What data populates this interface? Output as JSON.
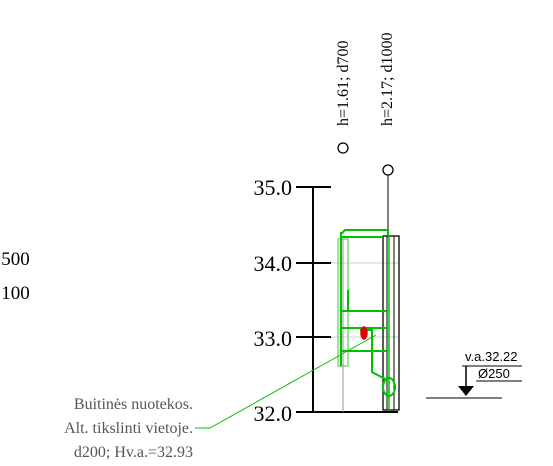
{
  "scale_labels": [
    ":500",
    ":100"
  ],
  "wells": [
    {
      "label": "h=1.61; d700"
    },
    {
      "label": "h=2.17; d1000"
    }
  ],
  "axis": {
    "ticks": [
      "35.0",
      "34.0",
      "33.0",
      "32.0"
    ]
  },
  "right_marker": {
    "elevation": "v.a.32.22",
    "diameter": "Ø250"
  },
  "note": {
    "line1": "Buitinės nuotekos.",
    "line2": "Alt. tikslinti vietoje.",
    "line3": "d200; Hv.a.=32.93"
  },
  "colors": {
    "pipe_green": "#00c000",
    "light_green": "#7fd77f",
    "marker_red": "#e00000",
    "dark": "#000000"
  }
}
